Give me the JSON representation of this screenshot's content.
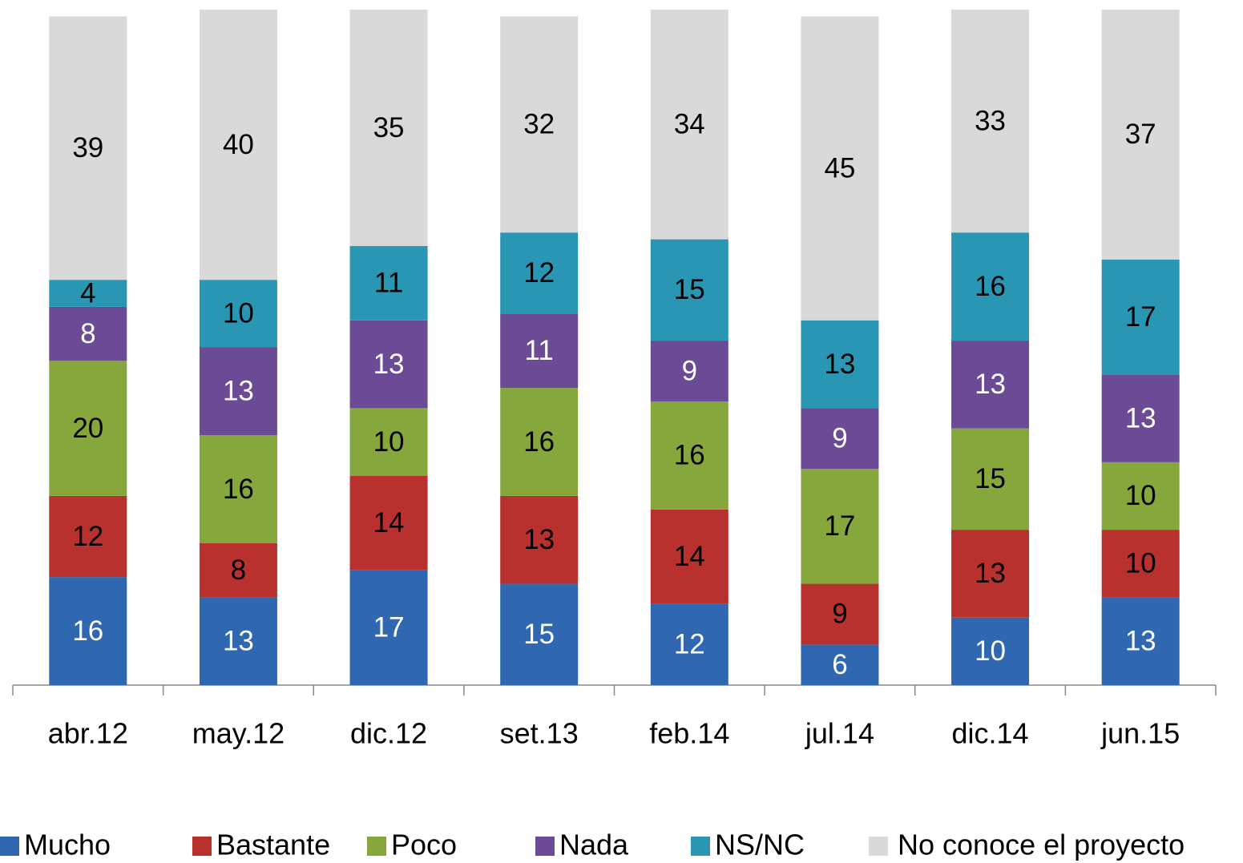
{
  "chart_data": {
    "type": "stacked_bar",
    "categories": [
      "abr.12",
      "may.12",
      "dic.12",
      "set.13",
      "feb.14",
      "jul.14",
      "dic.14",
      "jun.15"
    ],
    "ylim": [
      0,
      100
    ],
    "legend": "bottom",
    "series": [
      {
        "name": "Mucho",
        "color": "#2f68b0",
        "label_color": "#ffffff",
        "values": [
          16,
          13,
          17,
          15,
          12,
          6,
          10,
          13
        ]
      },
      {
        "name": "Bastante",
        "color": "#b8312f",
        "label_color": "#000000",
        "values": [
          12,
          8,
          14,
          13,
          14,
          9,
          13,
          10
        ]
      },
      {
        "name": "Poco",
        "color": "#86a73b",
        "label_color": "#000000",
        "values": [
          20,
          16,
          10,
          16,
          16,
          17,
          15,
          10
        ]
      },
      {
        "name": "Nada",
        "color": "#6b4a96",
        "label_color": "#ffffff",
        "values": [
          8,
          13,
          13,
          11,
          9,
          9,
          13,
          13
        ]
      },
      {
        "name": "NS/NC",
        "color": "#2997b4",
        "label_color": "#000000",
        "values": [
          4,
          10,
          11,
          12,
          15,
          13,
          16,
          17
        ]
      },
      {
        "name": "No conoce el proyecto",
        "color": "#d9d9d9",
        "label_color": "#000000",
        "values": [
          39,
          40,
          35,
          32,
          34,
          45,
          33,
          37
        ]
      }
    ]
  }
}
